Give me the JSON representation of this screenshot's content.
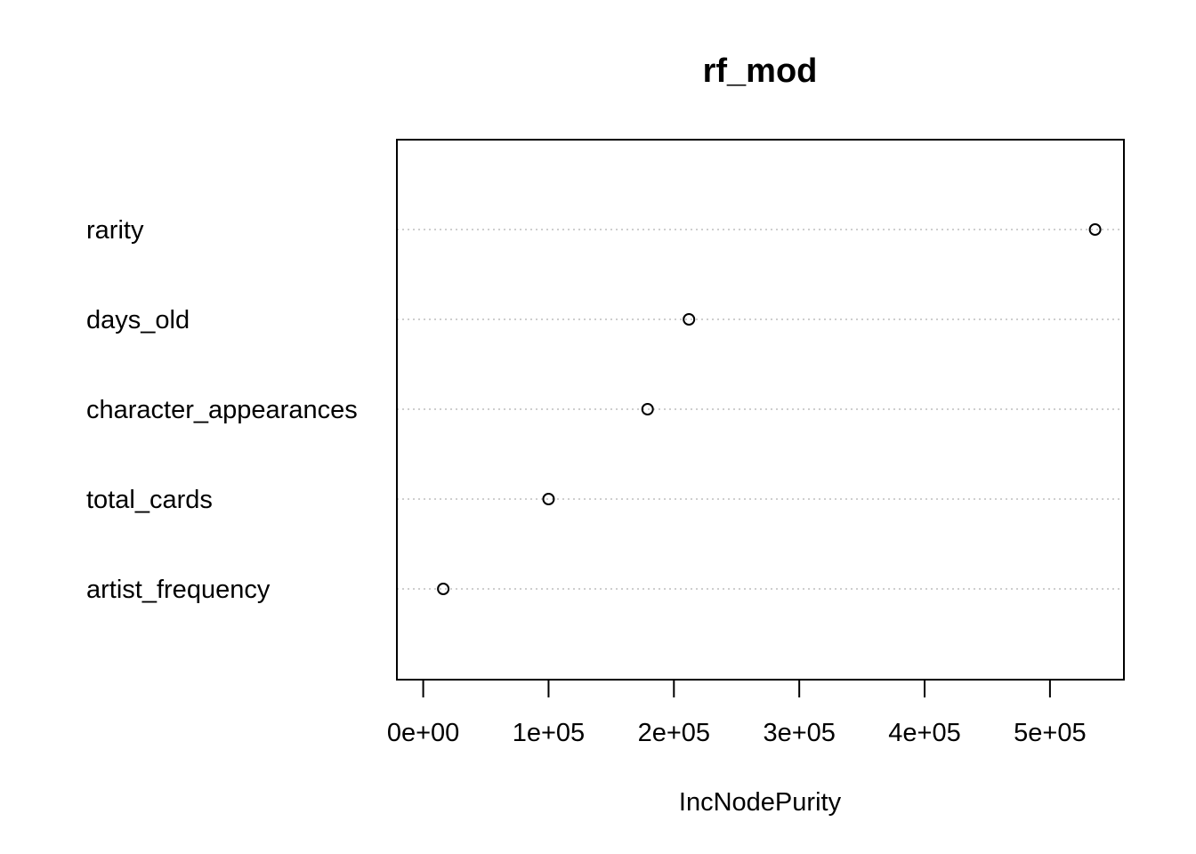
{
  "chart_data": {
    "type": "scatter",
    "subtype": "dotchart",
    "title": "rf_mod",
    "xlabel": "IncNodePurity",
    "ylabel": "",
    "categories": [
      "rarity",
      "days_old",
      "character_appearances",
      "total_cards",
      "artist_frequency"
    ],
    "values": [
      536000,
      212000,
      179000,
      100000,
      16000
    ],
    "xlim": [
      -21000,
      559000
    ],
    "xticks": [
      0,
      100000,
      200000,
      300000,
      400000,
      500000
    ],
    "xtick_labels": [
      "0e+00",
      "1e+05",
      "2e+05",
      "3e+05",
      "4e+05",
      "5e+05"
    ],
    "grid": "dotted horizontal guide lines",
    "marker": "open-circle"
  }
}
